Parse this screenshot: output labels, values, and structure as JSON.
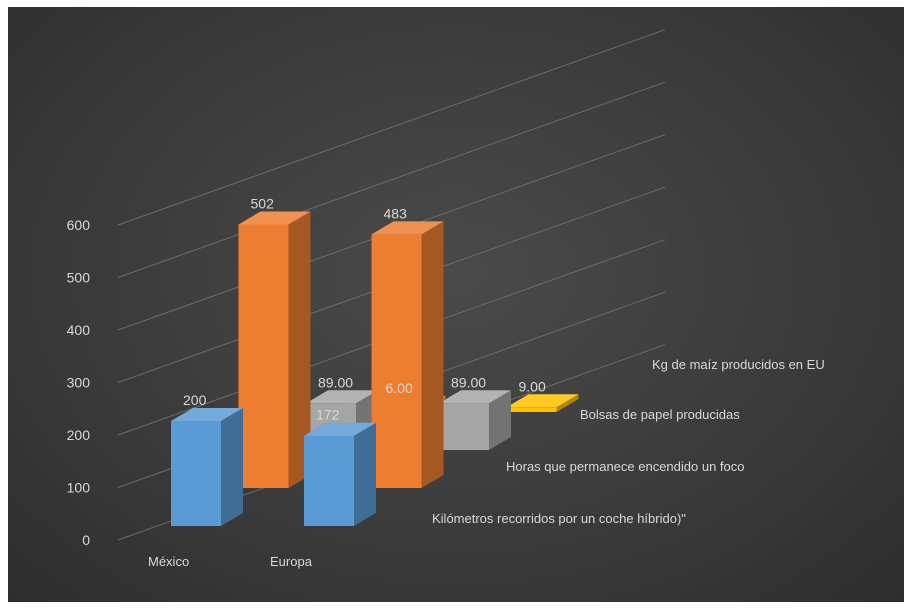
{
  "chart_data": {
    "type": "bar",
    "subtype": "3d-column",
    "categories": [
      "México",
      "Europa"
    ],
    "series": [
      {
        "name": "Kilómetros recorridos por un coche híbrido)\"",
        "values": [
          200,
          172
        ],
        "labels": [
          "200",
          "172"
        ],
        "color": "#5b9bd5"
      },
      {
        "name": "Horas que permanece encendido un foco",
        "values": [
          502,
          483
        ],
        "labels": [
          "502",
          "483"
        ],
        "color": "#ed7d31"
      },
      {
        "name": "Bolsas de papel producidas",
        "values": [
          89,
          89
        ],
        "labels": [
          "89.00",
          "89.00"
        ],
        "color": "#a5a5a5"
      },
      {
        "name": "Kg de maíz producidos en EU",
        "values": [
          6,
          9
        ],
        "labels": [
          "6.00",
          "9.00"
        ],
        "color": "#ffc000"
      }
    ],
    "y_ticks": [
      "0",
      "100",
      "200",
      "300",
      "400",
      "500",
      "600"
    ],
    "ylim": [
      0,
      600
    ],
    "grid": true,
    "legend": "none"
  }
}
